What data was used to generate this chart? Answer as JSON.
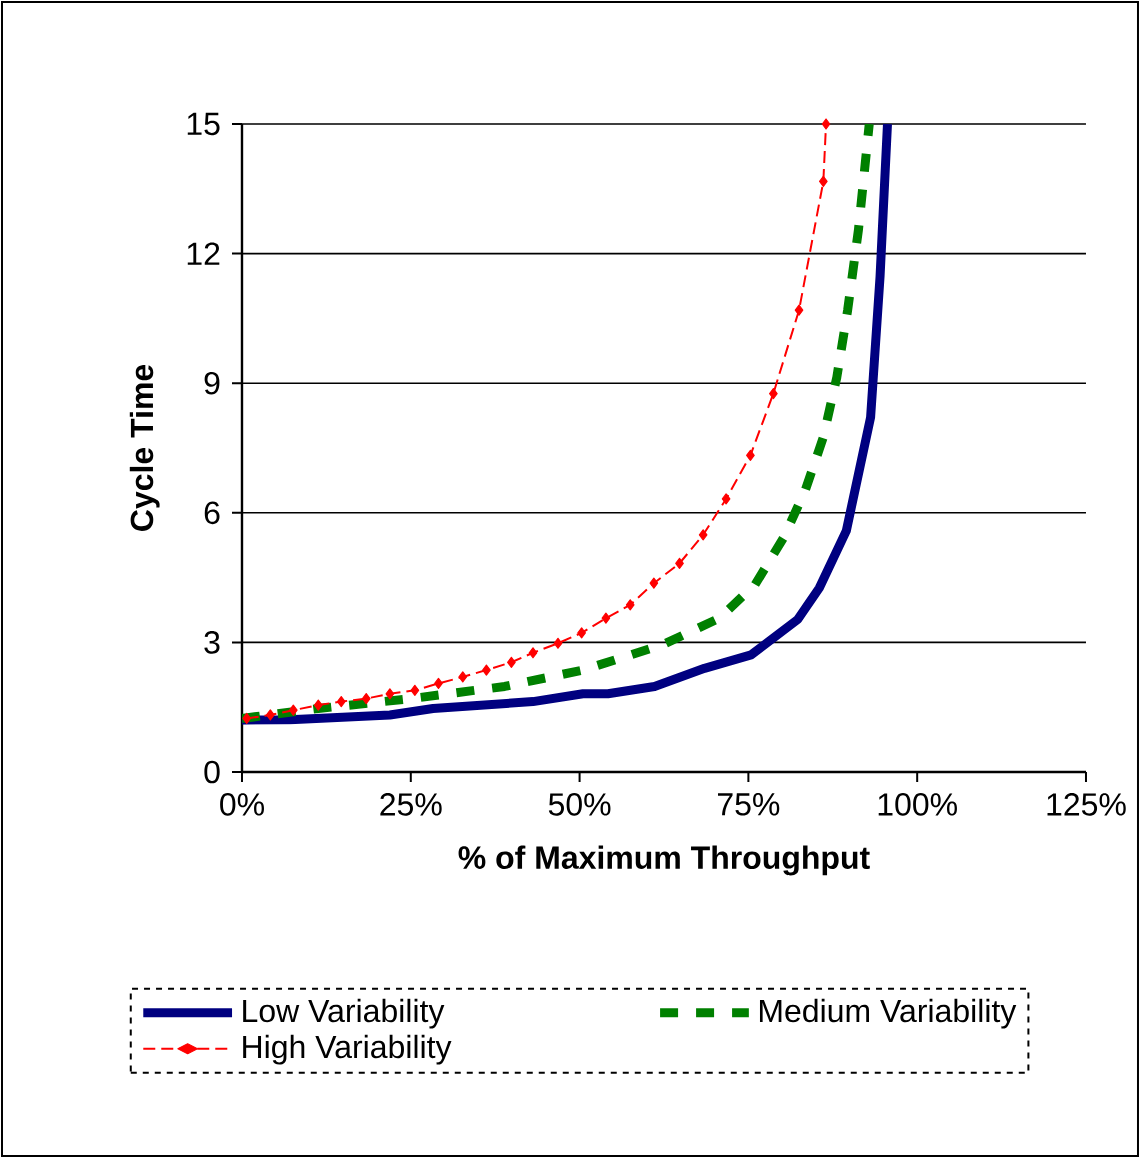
{
  "chart_data": {
    "type": "line",
    "xlabel": "% of Maximum Throughput",
    "ylabel": "Cycle Time",
    "xlim": [
      0,
      125
    ],
    "ylim": [
      0,
      15
    ],
    "xticks": [
      {
        "value": 0,
        "label": "0%"
      },
      {
        "value": 25,
        "label": "25%"
      },
      {
        "value": 50,
        "label": "50%"
      },
      {
        "value": 75,
        "label": "75%"
      },
      {
        "value": 100,
        "label": "100%"
      },
      {
        "value": 125,
        "label": "125%"
      }
    ],
    "yticks": [
      0,
      3,
      6,
      9,
      12,
      15
    ],
    "grid": "y",
    "legend": "bottom",
    "series": [
      {
        "name": "Low Variability",
        "color": "#000080",
        "line_style": "solid",
        "marker": "none",
        "x": [
          0,
          7.1,
          21.9,
          28.3,
          43.1,
          50.5,
          54.2,
          61.1,
          68.5,
          75.4,
          82.3,
          85.5,
          89.5,
          93.1,
          94.5,
          95.6
        ],
        "values": [
          1.2,
          1.21,
          1.32,
          1.47,
          1.63,
          1.81,
          1.81,
          1.98,
          2.4,
          2.71,
          3.53,
          4.26,
          5.58,
          8.21,
          11.47,
          15
        ]
      },
      {
        "name": "Medium Variability",
        "color": "#008000",
        "line_style": "dashed",
        "marker": "none",
        "x": [
          0,
          11.3,
          25.1,
          38.9,
          50.5,
          62.2,
          70.7,
          76.0,
          80.2,
          83.4,
          86.1,
          88.1,
          89.7,
          91.3,
          92.9
        ],
        "values": [
          1.24,
          1.47,
          1.7,
          1.98,
          2.36,
          2.94,
          3.56,
          4.34,
          5.42,
          6.51,
          7.75,
          9.14,
          10.69,
          12.55,
          15
        ]
      },
      {
        "name": "High Variability",
        "color": "#ff0000",
        "line_style": "dashed",
        "marker": "diamond",
        "x": [
          0.7,
          4.2,
          7.6,
          11.3,
          14.7,
          18.4,
          21.9,
          25.6,
          29.1,
          32.7,
          36.2,
          39.9,
          43.1,
          46.8,
          50.3,
          53.9,
          57.5,
          61.0,
          64.8,
          68.3,
          71.7,
          75.3,
          78.7,
          82.5,
          86.1,
          86.5
        ],
        "values": [
          1.24,
          1.32,
          1.43,
          1.55,
          1.63,
          1.7,
          1.81,
          1.89,
          2.05,
          2.2,
          2.36,
          2.54,
          2.76,
          2.98,
          3.22,
          3.56,
          3.87,
          4.37,
          4.83,
          5.49,
          6.32,
          7.33,
          8.76,
          10.69,
          13.67,
          15
        ]
      }
    ]
  }
}
